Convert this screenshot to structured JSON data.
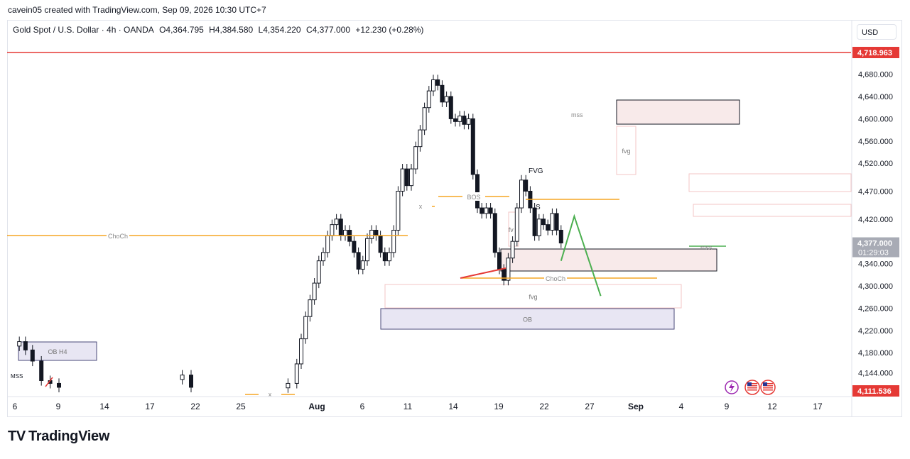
{
  "header": {
    "caption": "cavein05 created with TradingView.com, Sep 09, 2026 10:30 UTC+7"
  },
  "legend": {
    "symbol": "Gold Spot / U.S. Dollar · 4h · OANDA",
    "open": "O4,364.795",
    "high": "H4,384.580",
    "low": "L4,354.220",
    "close": "C4,377.000",
    "change": "+12.230 (+0.28%)"
  },
  "currency_label": "USD",
  "branding": {
    "logo_text": "TradingView"
  },
  "colors": {
    "up": "#131722",
    "down": "#131722",
    "red_level": "#e53935",
    "orange": "#f5a623",
    "green": "#4caf50"
  },
  "chart_data": {
    "type": "candlestick",
    "symbol": "Gold Spot / U.S. Dollar",
    "interval": "4h",
    "ylim": [
      4111.536,
      4718.963
    ],
    "y_ticks": [
      4144,
      4180,
      4220,
      4260,
      4300,
      4340,
      4420,
      4470,
      4520,
      4560,
      4600,
      4640,
      4680
    ],
    "x_ticks": [
      "6",
      "9",
      "14",
      "17",
      "22",
      "25",
      "Aug",
      "6",
      "11",
      "14",
      "19",
      "22",
      "27",
      "Sep",
      "4",
      "9",
      "12",
      "17"
    ],
    "price_labels": [
      {
        "text": "4,718.963",
        "value": 4718.963,
        "color": "#e53935"
      },
      {
        "text": "4,377.000",
        "value": 4377,
        "color": "#a8abb5",
        "sub": "01:29:03"
      },
      {
        "text": "4,111.536",
        "value": 4111.536,
        "color": "#e53935"
      }
    ],
    "levels": [
      {
        "value": 4718.963,
        "color": "#e53935",
        "from": 0,
        "to": 1
      }
    ],
    "series_close": [
      {
        "d": 6.5,
        "c": 4200
      },
      {
        "d": 7.2,
        "c": 4185
      },
      {
        "d": 8,
        "c": 4165
      },
      {
        "d": 9,
        "c": 4130
      },
      {
        "d": 10,
        "c": 4125
      },
      {
        "d": 11,
        "c": 4118
      },
      {
        "d": 25,
        "c": 4140
      },
      {
        "d": 26,
        "c": 4118
      },
      {
        "d": 37,
        "c": 4125
      },
      {
        "d": 38,
        "c": 4160
      },
      {
        "d": 38.5,
        "c": 4205
      },
      {
        "d": 39,
        "c": 4245
      },
      {
        "d": 39.5,
        "c": 4275
      },
      {
        "d": 40,
        "c": 4305
      },
      {
        "d": 40.5,
        "c": 4345
      },
      {
        "d": 41,
        "c": 4360
      },
      {
        "d": 41.5,
        "c": 4390
      },
      {
        "d": 42,
        "c": 4410
      },
      {
        "d": 42.5,
        "c": 4420
      },
      {
        "d": 43,
        "c": 4390
      },
      {
        "d": 43.5,
        "c": 4400
      },
      {
        "d": 44,
        "c": 4380
      },
      {
        "d": 44.5,
        "c": 4360
      },
      {
        "d": 45,
        "c": 4330
      },
      {
        "d": 45.5,
        "c": 4345
      },
      {
        "d": 46,
        "c": 4385
      },
      {
        "d": 46.5,
        "c": 4400
      },
      {
        "d": 47,
        "c": 4390
      },
      {
        "d": 47.5,
        "c": 4360
      },
      {
        "d": 48,
        "c": 4345
      },
      {
        "d": 48.5,
        "c": 4360
      },
      {
        "d": 49,
        "c": 4400
      },
      {
        "d": 49.5,
        "c": 4470
      },
      {
        "d": 50,
        "c": 4510
      },
      {
        "d": 50.5,
        "c": 4480
      },
      {
        "d": 51,
        "c": 4510
      },
      {
        "d": 51.5,
        "c": 4550
      },
      {
        "d": 52,
        "c": 4580
      },
      {
        "d": 52.5,
        "c": 4620
      },
      {
        "d": 53,
        "c": 4650
      },
      {
        "d": 53.5,
        "c": 4670
      },
      {
        "d": 54,
        "c": 4660
      },
      {
        "d": 54.5,
        "c": 4630
      },
      {
        "d": 55,
        "c": 4640
      },
      {
        "d": 55.5,
        "c": 4600
      },
      {
        "d": 56,
        "c": 4595
      },
      {
        "d": 56.5,
        "c": 4605
      },
      {
        "d": 57,
        "c": 4590
      },
      {
        "d": 57.5,
        "c": 4600
      },
      {
        "d": 58,
        "c": 4500
      },
      {
        "d": 58.5,
        "c": 4440
      },
      {
        "d": 59,
        "c": 4430
      },
      {
        "d": 59.5,
        "c": 4440
      },
      {
        "d": 60,
        "c": 4430
      },
      {
        "d": 60.5,
        "c": 4360
      },
      {
        "d": 61,
        "c": 4330
      },
      {
        "d": 61.5,
        "c": 4310
      },
      {
        "d": 62,
        "c": 4350
      },
      {
        "d": 62.5,
        "c": 4380
      },
      {
        "d": 63,
        "c": 4440
      },
      {
        "d": 63.5,
        "c": 4490
      },
      {
        "d": 64,
        "c": 4470
      },
      {
        "d": 64.5,
        "c": 4440
      },
      {
        "d": 65,
        "c": 4390
      },
      {
        "d": 65.5,
        "c": 4420
      },
      {
        "d": 66,
        "c": 4410
      },
      {
        "d": 66.5,
        "c": 4400
      },
      {
        "d": 67,
        "c": 4430
      },
      {
        "d": 67.5,
        "c": 4400
      },
      {
        "d": 68,
        "c": 4377
      }
    ],
    "projection": [
      {
        "d": 68,
        "c": 4345
      },
      {
        "d": 69.5,
        "c": 4425
      },
      {
        "d": 72.5,
        "c": 4282
      }
    ],
    "annotations": [
      "OB H4",
      "MSS",
      "x",
      "x",
      "BOS",
      "ChoCh",
      "ChoCh",
      "fvg",
      "fvg",
      "OB",
      "FVG",
      "S",
      "mss",
      "mss",
      "fv g"
    ]
  }
}
